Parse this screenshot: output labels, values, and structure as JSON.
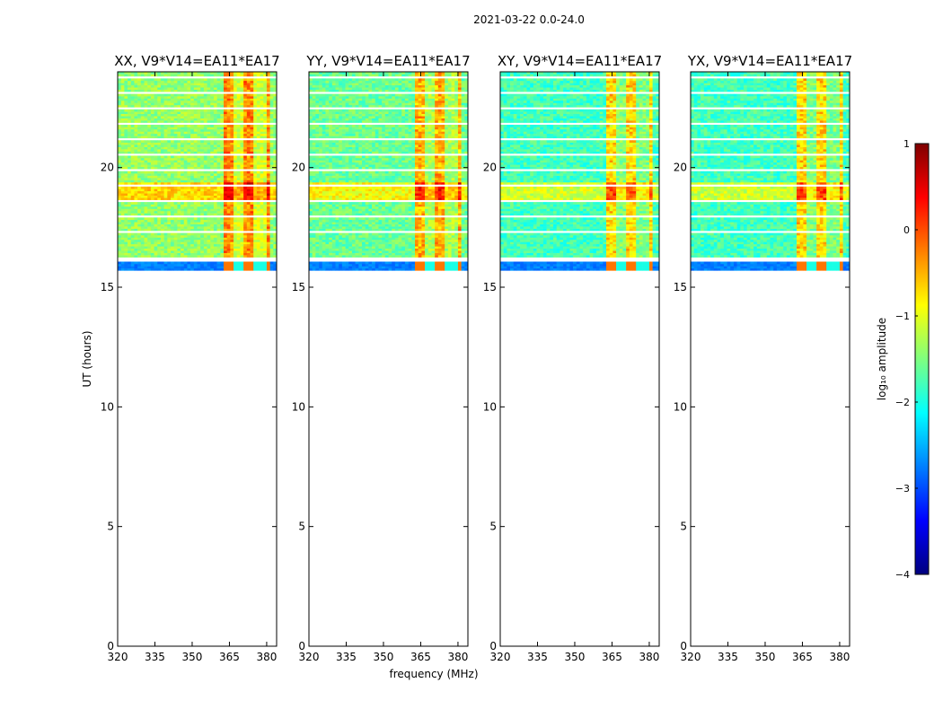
{
  "figure_title": "2021-03-22 0.0-24.0",
  "colorbar": {
    "label": "log₁₀ amplitude",
    "min": -4,
    "max": 1,
    "ticks": [
      1,
      0,
      -1,
      -2,
      -3,
      -4
    ],
    "tick_labels": [
      "1",
      "0",
      "−1",
      "−2",
      "−3",
      "−4"
    ],
    "colormap": "jet",
    "colors": [
      "#00007f",
      "#0000ff",
      "#007fff",
      "#00ffff",
      "#7fff7f",
      "#ffff00",
      "#ff7f00",
      "#ff0000",
      "#7f0000"
    ]
  },
  "chart_data": [
    {
      "type": "heatmap",
      "title": "XX, V9*V14=EA11*EA17",
      "xlabel": "",
      "ylabel": "UT (hours)",
      "xlim": [
        320,
        384
      ],
      "ylim": [
        0,
        24
      ],
      "xticks": [
        320,
        335,
        350,
        365,
        380
      ],
      "xtick_labels": [
        "320",
        "335",
        "350",
        "365",
        "380"
      ],
      "yticks": [
        0,
        5,
        10,
        15,
        20
      ],
      "ytick_labels": [
        "0",
        "5",
        "10",
        "15",
        "20"
      ],
      "data_extent_hours": [
        15.7,
        24.0
      ],
      "rfi_band_mhz": [
        362,
        381
      ],
      "typical_log_amplitude": -1.4
    },
    {
      "type": "heatmap",
      "title": "YY, V9*V14=EA11*EA17",
      "xlabel": "frequency (MHz)",
      "ylabel": "",
      "xlim": [
        320,
        384
      ],
      "ylim": [
        0,
        24
      ],
      "xticks": [
        320,
        335,
        350,
        365,
        380
      ],
      "xtick_labels": [
        "320",
        "335",
        "350",
        "365",
        "380"
      ],
      "yticks": [
        0,
        5,
        10,
        15,
        20
      ],
      "ytick_labels": [
        "0",
        "5",
        "10",
        "15",
        "20"
      ],
      "data_extent_hours": [
        15.7,
        24.0
      ],
      "rfi_band_mhz": [
        362,
        381
      ],
      "typical_log_amplitude": -1.6
    },
    {
      "type": "heatmap",
      "title": "XY, V9*V14=EA11*EA17",
      "xlabel": "",
      "ylabel": "",
      "xlim": [
        320,
        384
      ],
      "ylim": [
        0,
        24
      ],
      "xticks": [
        320,
        335,
        350,
        365,
        380
      ],
      "xtick_labels": [
        "320",
        "335",
        "350",
        "365",
        "380"
      ],
      "yticks": [
        0,
        5,
        10,
        15,
        20
      ],
      "ytick_labels": [
        "0",
        "5",
        "10",
        "15",
        "20"
      ],
      "data_extent_hours": [
        15.7,
        24.0
      ],
      "rfi_band_mhz": [
        362,
        381
      ],
      "typical_log_amplitude": -1.8
    },
    {
      "type": "heatmap",
      "title": "YX, V9*V14=EA11*EA17",
      "xlabel": "",
      "ylabel": "",
      "xlim": [
        320,
        384
      ],
      "ylim": [
        0,
        24
      ],
      "xticks": [
        320,
        335,
        350,
        365,
        380
      ],
      "xtick_labels": [
        "320",
        "335",
        "350",
        "365",
        "380"
      ],
      "yticks": [
        0,
        5,
        10,
        15,
        20
      ],
      "ytick_labels": [
        "0",
        "5",
        "10",
        "15",
        "20"
      ],
      "data_extent_hours": [
        15.7,
        24.0
      ],
      "rfi_band_mhz": [
        362,
        381
      ],
      "typical_log_amplitude": -1.8
    }
  ]
}
